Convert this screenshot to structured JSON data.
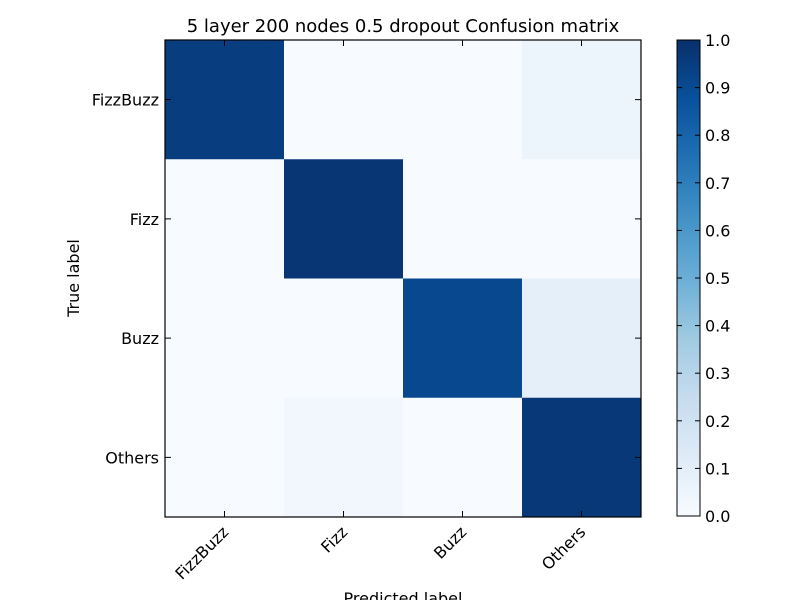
{
  "chart_data": {
    "type": "heatmap",
    "title": "5 layer 200 nodes 0.5 dropout Confusion matrix",
    "xlabel": "Predicted label",
    "ylabel": "True label",
    "x_categories": [
      "FizzBuzz",
      "Fizz",
      "Buzz",
      "Others"
    ],
    "y_categories": [
      "FizzBuzz",
      "Fizz",
      "Buzz",
      "Others"
    ],
    "matrix": [
      [
        0.95,
        0.0,
        0.0,
        0.05
      ],
      [
        0.0,
        0.98,
        0.0,
        0.0
      ],
      [
        0.0,
        0.0,
        0.91,
        0.09
      ],
      [
        0.0,
        0.03,
        0.0,
        0.97
      ]
    ],
    "colorbar": {
      "min": 0.0,
      "max": 1.0,
      "ticks": [
        "0.0",
        "0.1",
        "0.2",
        "0.3",
        "0.4",
        "0.5",
        "0.6",
        "0.7",
        "0.8",
        "0.9",
        "1.0"
      ]
    },
    "colormap": [
      "#f7fbff",
      "#deebf7",
      "#c6dbef",
      "#9ecae1",
      "#6baed6",
      "#4292c6",
      "#2171b5",
      "#08519c",
      "#08306b"
    ]
  }
}
